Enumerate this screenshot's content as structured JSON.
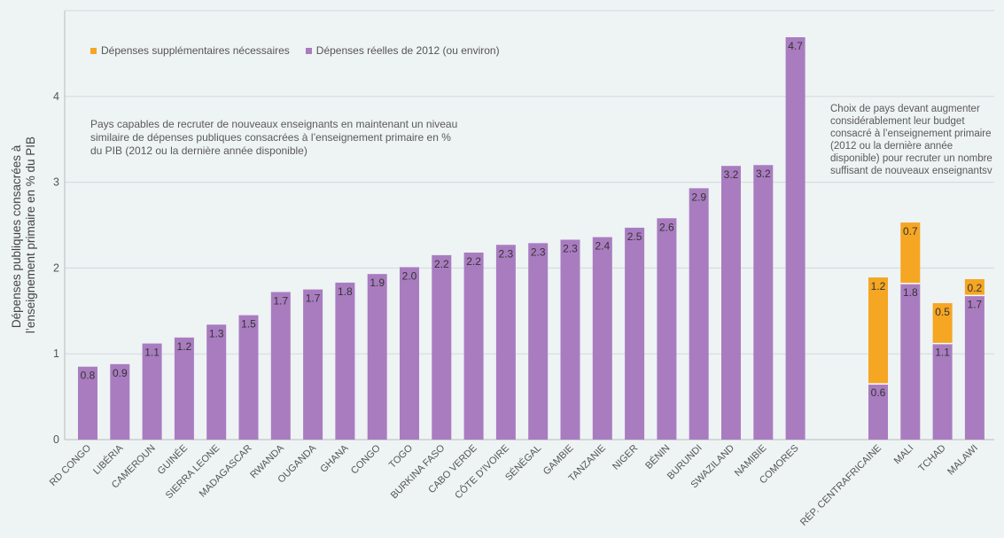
{
  "chart_data": {
    "type": "bar",
    "stacked": true,
    "ylabel": "Dépenses publiques consacrées à l’enseignement primaire en % du PIB",
    "ylim": [
      0,
      5
    ],
    "yticks": [
      "0",
      "1",
      "2",
      "3",
      "4"
    ],
    "grid": true,
    "legend_position": "top-left",
    "series": [
      {
        "name": "Dépenses supplémentaires nécessaires",
        "color": "#f5a623"
      },
      {
        "name": "Dépenses réelles de 2012 (ou environ)",
        "color": "#a97cc0"
      }
    ],
    "groups": [
      {
        "note": "Pays capables de recruter de nouveaux enseignants en maintenant un niveau similaire de dépenses publiques consacrées à l’enseignement primaire en % du PIB (2012 ou la dernière année disponible)",
        "categories": [
          "RD CONGO",
          "LIBÉRIA",
          "CAMEROUN",
          "GUINÉE",
          "SIERRA LEONE",
          "MADAGASCAR",
          "RWANDA",
          "OUGANDA",
          "GHANA",
          "CONGO",
          "TOGO",
          "BURKINA FASO",
          "CABO VERDE",
          "CÔTE D'IVOIRE",
          "SÉNÉGAL",
          "GAMBIE",
          "TANZANIE",
          "NIGER",
          "BÉNIN",
          "BURUNDI",
          "SWAZILAND",
          "NAMIBIE",
          "COMORES"
        ],
        "actual": [
          0.85,
          0.88,
          1.12,
          1.19,
          1.34,
          1.45,
          1.72,
          1.75,
          1.83,
          1.93,
          2.01,
          2.15,
          2.18,
          2.27,
          2.29,
          2.33,
          2.36,
          2.47,
          2.58,
          2.93,
          3.19,
          3.2,
          4.69
        ],
        "actual_labels": [
          "0.8",
          "0.9",
          "1.1",
          "1.2",
          "1.3",
          "1.5",
          "1.7",
          "1.7",
          "1.8",
          "1.9",
          "2.0",
          "2.2",
          "2.2",
          "2.3",
          "2.3",
          "2.3",
          "2.4",
          "2.5",
          "2.6",
          "2.9",
          "3.2",
          "3.2",
          "4.7"
        ]
      },
      {
        "note": "Choix de pays devant augmenter considérablement leur budget consacré à l’enseignement primaire (2012 ou la dernière année disponible) pour recruter un nombre suffisant de nouveaux enseignantsv",
        "categories": [
          "RÉP. CENTRAFRICAINE",
          "MALI",
          "TCHAD",
          "MALAWI"
        ],
        "actual": [
          0.65,
          1.82,
          1.12,
          1.68
        ],
        "additional": [
          1.24,
          0.71,
          0.47,
          0.19
        ],
        "actual_labels": [
          "0.6",
          "1.8",
          "1.1",
          "1.7"
        ],
        "additional_labels": [
          "1.2",
          "0.7",
          "0.5",
          "0.2"
        ]
      }
    ]
  }
}
